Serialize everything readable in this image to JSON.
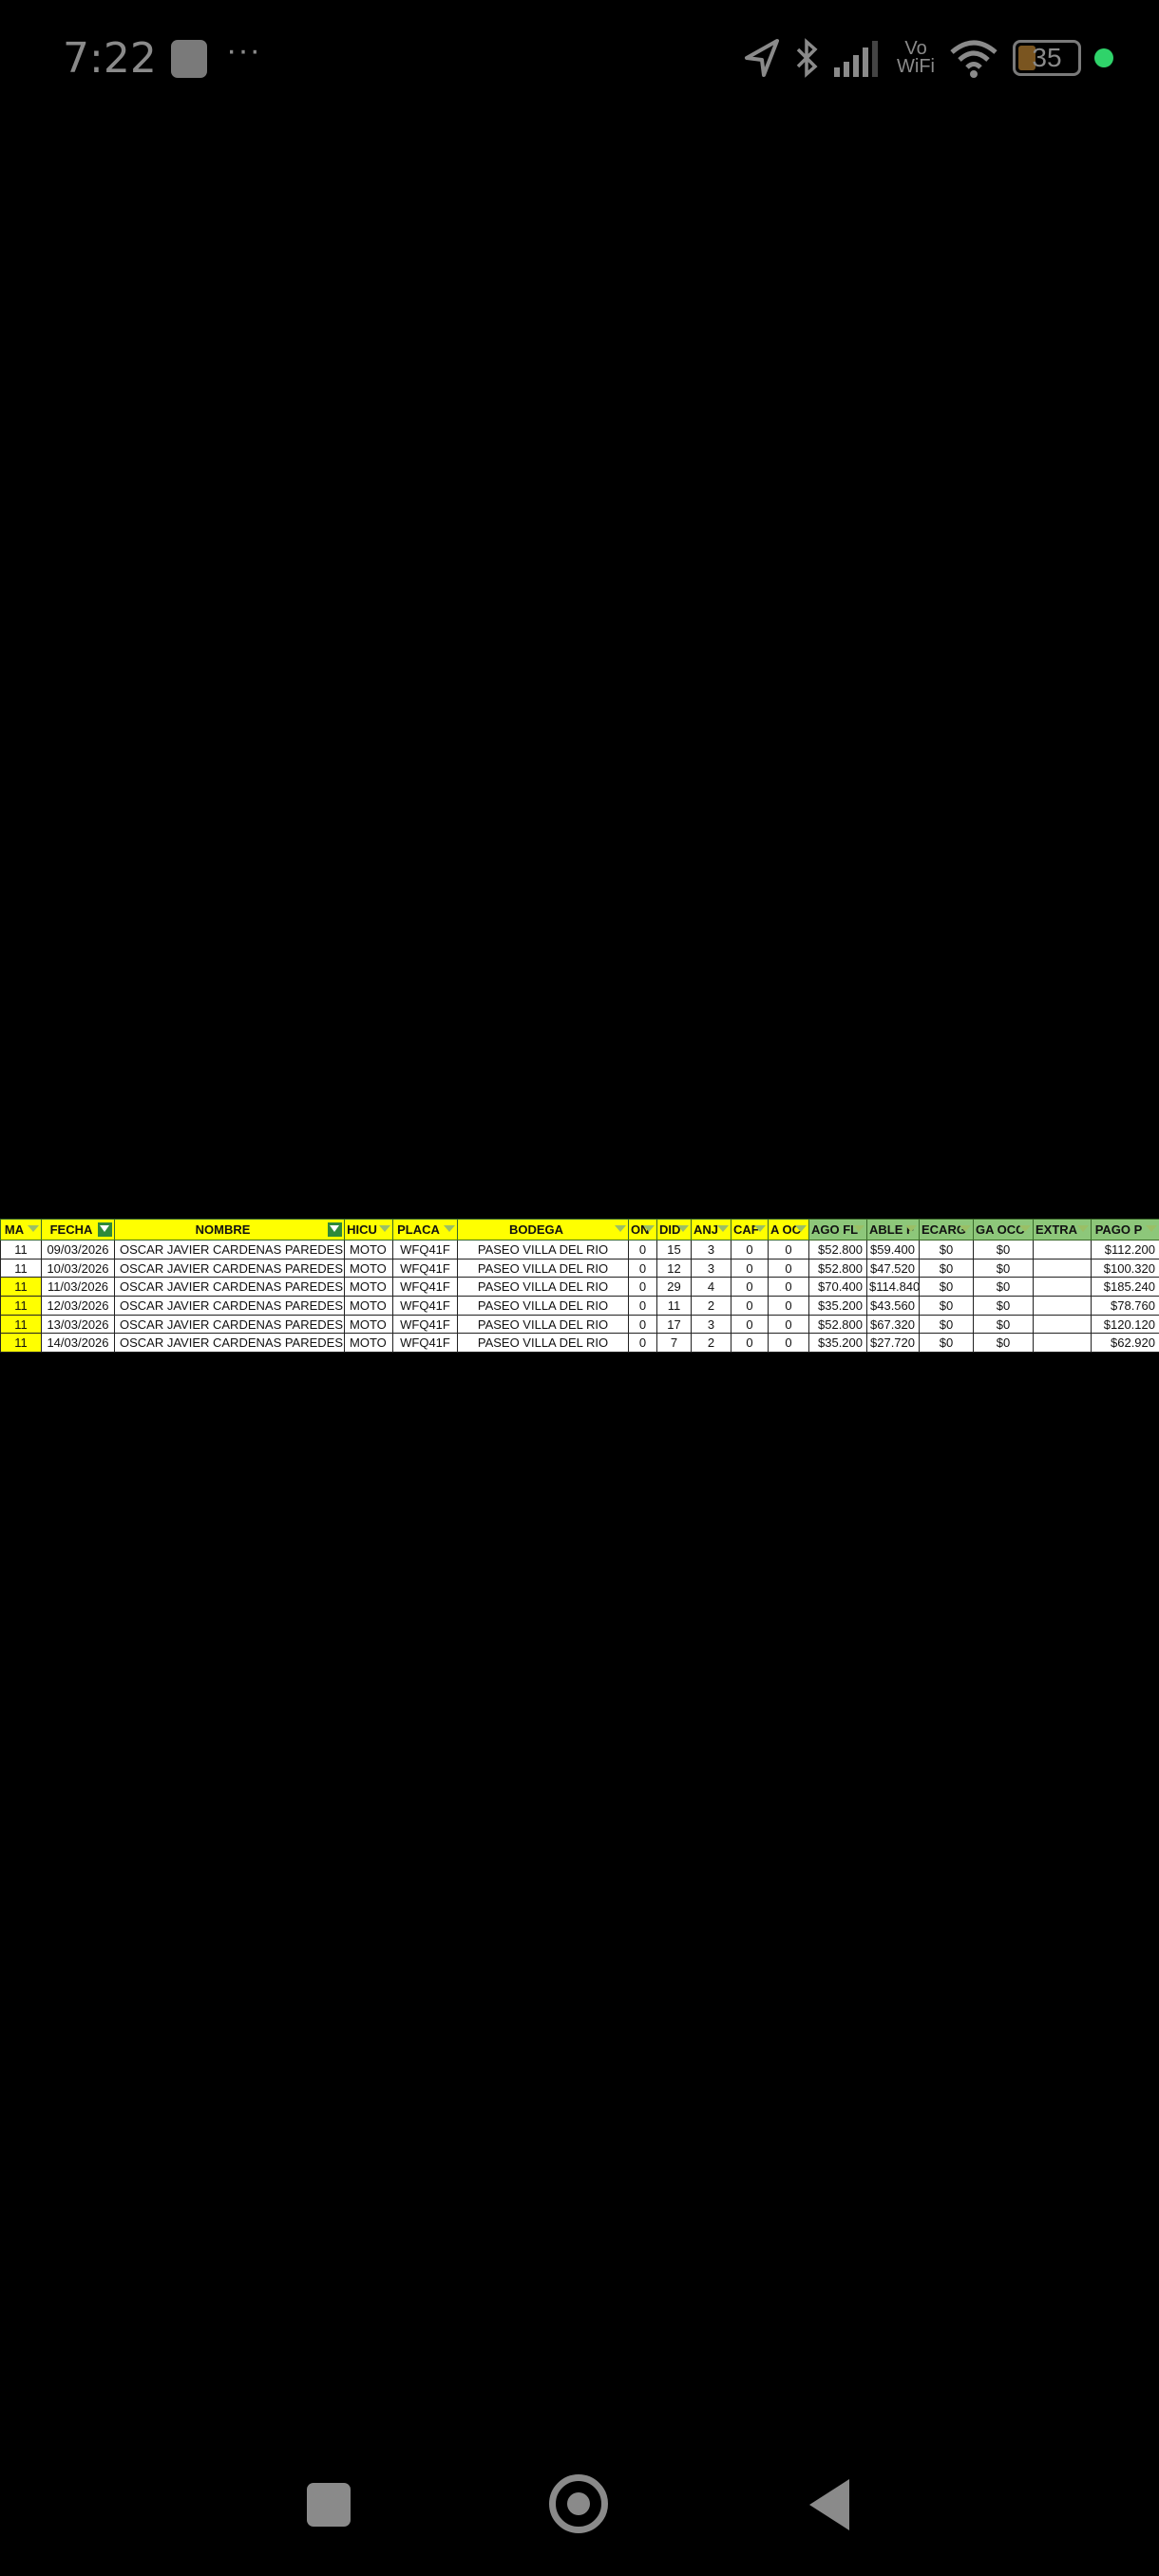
{
  "status_bar": {
    "time": "7:22",
    "more": "···",
    "vo_wifi_top": "Vo",
    "vo_wifi_bottom": "WiFi",
    "battery": "35",
    "icons": [
      "location-arrow-icon",
      "bluetooth-icon",
      "signal-icon",
      "wifi-icon",
      "battery-icon",
      "green-dot-indicator"
    ]
  },
  "sheet": {
    "colors": {
      "header_yellow": "#ffff00",
      "header_green": "#8dc77a",
      "filter_active": "#2f8a3a"
    },
    "headers": [
      {
        "label": "MA",
        "style": "y",
        "filter": "normal"
      },
      {
        "label": "FECHA",
        "style": "y",
        "filter": "active"
      },
      {
        "label": "NOMBRE",
        "style": "y",
        "filter": "active"
      },
      {
        "label": "HICU",
        "style": "y",
        "filter": "normal"
      },
      {
        "label": "PLACA",
        "style": "y",
        "filter": "normal"
      },
      {
        "label": "BODEGA",
        "style": "y",
        "filter": "normal"
      },
      {
        "label": "ON",
        "style": "y",
        "filter": "normal"
      },
      {
        "label": "DID",
        "style": "y",
        "filter": "normal"
      },
      {
        "label": "ANJ",
        "style": "y",
        "filter": "normal"
      },
      {
        "label": "CAF",
        "style": "y",
        "filter": "normal"
      },
      {
        "label": "A OC",
        "style": "y",
        "filter": "normal"
      },
      {
        "label": "AGO FL",
        "style": "g",
        "filter": "normal"
      },
      {
        "label": "ABLE F",
        "style": "g",
        "filter": "normal"
      },
      {
        "label": "ECARG",
        "style": "g",
        "filter": "normal"
      },
      {
        "label": "GA OCC",
        "style": "g",
        "filter": "normal"
      },
      {
        "label": "EXTRA",
        "style": "g",
        "filter": "normal"
      },
      {
        "label": "PAGO P",
        "style": "g",
        "filter": "normal"
      }
    ],
    "rows": [
      {
        "highlight": false,
        "cells": [
          "11",
          "09/03/2026",
          "OSCAR JAVIER CARDENAS PAREDES",
          "MOTO",
          "WFQ41F",
          "PASEO VILLA DEL RIO",
          "0",
          "15",
          "3",
          "0",
          "0",
          "$52.800",
          "$59.400",
          "$0",
          "$0",
          "",
          "$112.200"
        ]
      },
      {
        "highlight": false,
        "cells": [
          "11",
          "10/03/2026",
          "OSCAR JAVIER CARDENAS PAREDES",
          "MOTO",
          "WFQ41F",
          "PASEO VILLA DEL RIO",
          "0",
          "12",
          "3",
          "0",
          "0",
          "$52.800",
          "$47.520",
          "$0",
          "$0",
          "",
          "$100.320"
        ]
      },
      {
        "highlight": true,
        "cells": [
          "11",
          "11/03/2026",
          "OSCAR JAVIER CARDENAS PAREDES",
          "MOTO",
          "WFQ41F",
          "PASEO VILLA DEL RIO",
          "0",
          "29",
          "4",
          "0",
          "0",
          "$70.400",
          "$114.840",
          "$0",
          "$0",
          "",
          "$185.240"
        ]
      },
      {
        "highlight": true,
        "cells": [
          "11",
          "12/03/2026",
          "OSCAR JAVIER CARDENAS PAREDES",
          "MOTO",
          "WFQ41F",
          "PASEO VILLA DEL RIO",
          "0",
          "11",
          "2",
          "0",
          "0",
          "$35.200",
          "$43.560",
          "$0",
          "$0",
          "",
          "$78.760"
        ]
      },
      {
        "highlight": true,
        "cells": [
          "11",
          "13/03/2026",
          "OSCAR JAVIER CARDENAS PAREDES",
          "MOTO",
          "WFQ41F",
          "PASEO VILLA DEL RIO",
          "0",
          "17",
          "3",
          "0",
          "0",
          "$52.800",
          "$67.320",
          "$0",
          "$0",
          "",
          "$120.120"
        ]
      },
      {
        "highlight": true,
        "cells": [
          "11",
          "14/03/2026",
          "OSCAR JAVIER CARDENAS PAREDES",
          "MOTO",
          "WFQ41F",
          "PASEO VILLA DEL RIO",
          "0",
          "7",
          "2",
          "0",
          "0",
          "$35.200",
          "$27.720",
          "$0",
          "$0",
          "",
          "$62.920"
        ]
      }
    ]
  },
  "nav_bar": {
    "icons": [
      "recents-square-icon",
      "home-circle-icon",
      "back-triangle-icon"
    ]
  }
}
